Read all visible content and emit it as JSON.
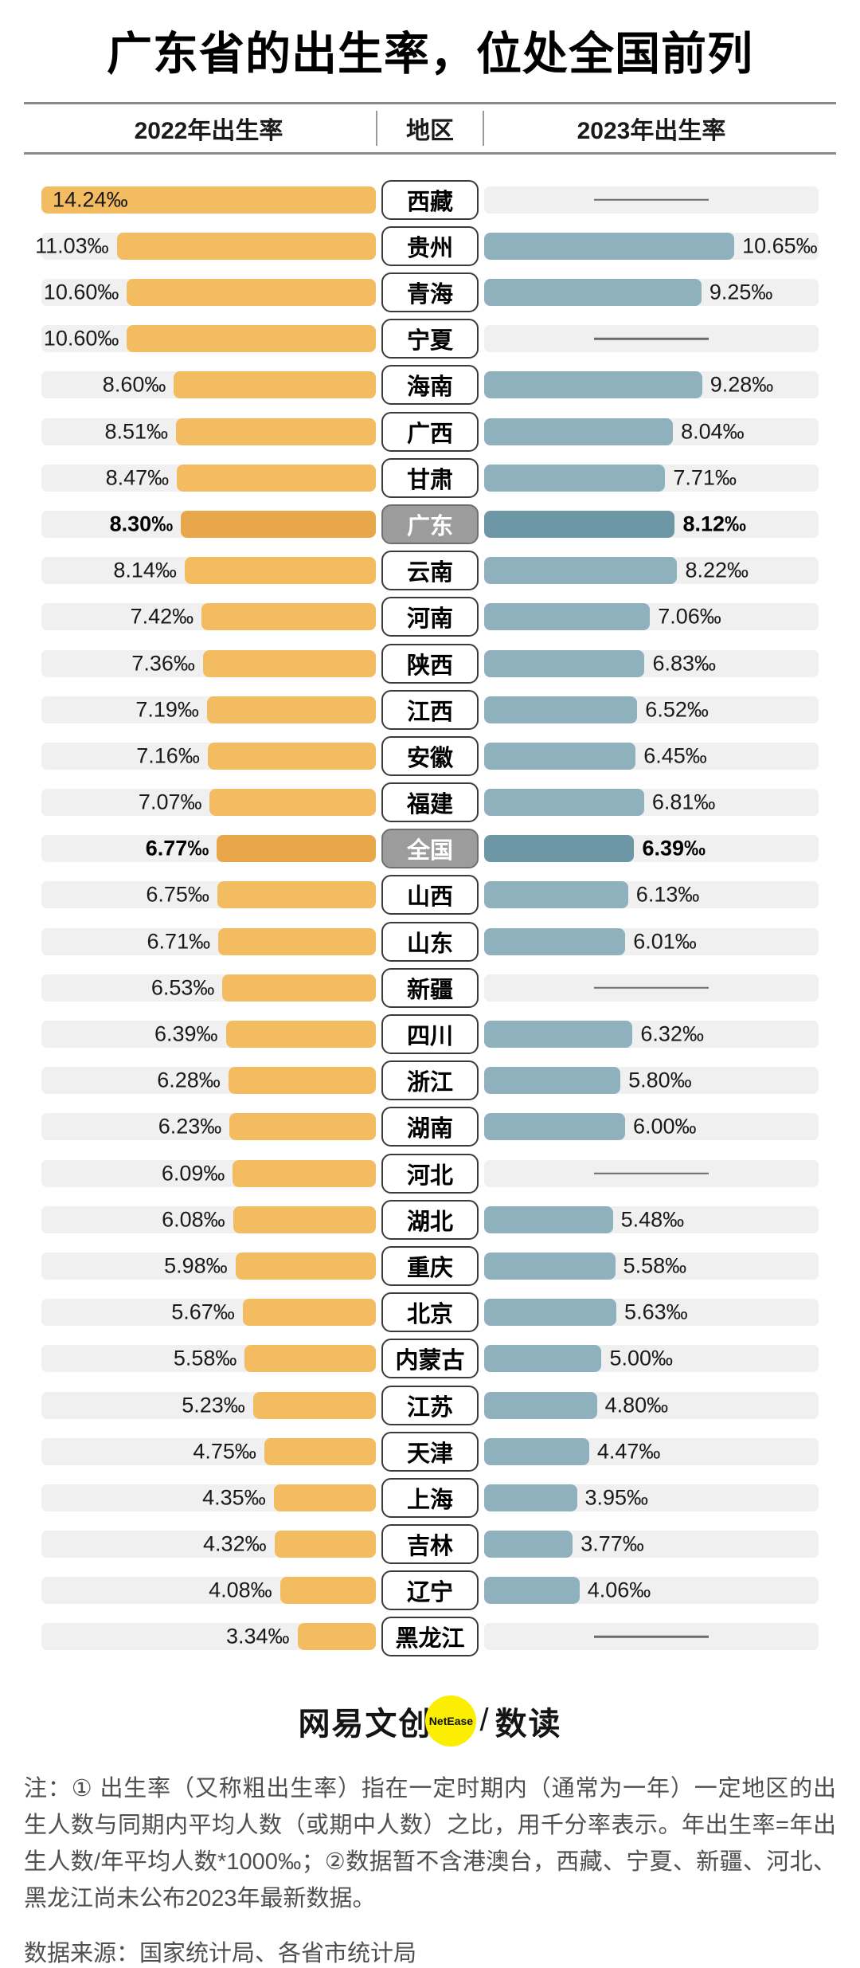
{
  "title": "广东省的出生率，位处全国前列",
  "header": {
    "col_2022": "2022年出生率",
    "col_region": "地区",
    "col_2023": "2023年出生率"
  },
  "chart_data": {
    "type": "bar",
    "subtype": "diverging-horizontal-tornado",
    "unit": "‰",
    "axis_max": 14.24,
    "series": [
      {
        "name": "2022年出生率",
        "color": "#F4BC60"
      },
      {
        "name": "2023年出生率",
        "color": "#8FB1BE"
      }
    ],
    "rows": [
      {
        "region": "西藏",
        "v2022": 14.24,
        "v2023": null,
        "highlight": false
      },
      {
        "region": "贵州",
        "v2022": 11.03,
        "v2023": 10.65,
        "highlight": false
      },
      {
        "region": "青海",
        "v2022": 10.6,
        "v2023": 9.25,
        "highlight": false
      },
      {
        "region": "宁夏",
        "v2022": 10.6,
        "v2023": null,
        "highlight": false
      },
      {
        "region": "海南",
        "v2022": 8.6,
        "v2023": 9.28,
        "highlight": false
      },
      {
        "region": "广西",
        "v2022": 8.51,
        "v2023": 8.04,
        "highlight": false
      },
      {
        "region": "甘肃",
        "v2022": 8.47,
        "v2023": 7.71,
        "highlight": false
      },
      {
        "region": "广东",
        "v2022": 8.3,
        "v2023": 8.12,
        "highlight": true
      },
      {
        "region": "云南",
        "v2022": 8.14,
        "v2023": 8.22,
        "highlight": false
      },
      {
        "region": "河南",
        "v2022": 7.42,
        "v2023": 7.06,
        "highlight": false
      },
      {
        "region": "陕西",
        "v2022": 7.36,
        "v2023": 6.83,
        "highlight": false
      },
      {
        "region": "江西",
        "v2022": 7.19,
        "v2023": 6.52,
        "highlight": false
      },
      {
        "region": "安徽",
        "v2022": 7.16,
        "v2023": 6.45,
        "highlight": false
      },
      {
        "region": "福建",
        "v2022": 7.07,
        "v2023": 6.81,
        "highlight": false
      },
      {
        "region": "全国",
        "v2022": 6.77,
        "v2023": 6.39,
        "highlight": true
      },
      {
        "region": "山西",
        "v2022": 6.75,
        "v2023": 6.13,
        "highlight": false
      },
      {
        "region": "山东",
        "v2022": 6.71,
        "v2023": 6.01,
        "highlight": false
      },
      {
        "region": "新疆",
        "v2022": 6.53,
        "v2023": null,
        "highlight": false
      },
      {
        "region": "四川",
        "v2022": 6.39,
        "v2023": 6.32,
        "highlight": false
      },
      {
        "region": "浙江",
        "v2022": 6.28,
        "v2023": 5.8,
        "highlight": false
      },
      {
        "region": "湖南",
        "v2022": 6.23,
        "v2023": 6.0,
        "highlight": false
      },
      {
        "region": "河北",
        "v2022": 6.09,
        "v2023": null,
        "highlight": false
      },
      {
        "region": "湖北",
        "v2022": 6.08,
        "v2023": 5.48,
        "highlight": false
      },
      {
        "region": "重庆",
        "v2022": 5.98,
        "v2023": 5.58,
        "highlight": false
      },
      {
        "region": "北京",
        "v2022": 5.67,
        "v2023": 5.63,
        "highlight": false
      },
      {
        "region": "内蒙古",
        "v2022": 5.58,
        "v2023": 5.0,
        "highlight": false
      },
      {
        "region": "江苏",
        "v2022": 5.23,
        "v2023": 4.8,
        "highlight": false
      },
      {
        "region": "天津",
        "v2022": 4.75,
        "v2023": 4.47,
        "highlight": false
      },
      {
        "region": "上海",
        "v2022": 4.35,
        "v2023": 3.95,
        "highlight": false
      },
      {
        "region": "吉林",
        "v2022": 4.32,
        "v2023": 3.77,
        "highlight": false
      },
      {
        "region": "辽宁",
        "v2022": 4.08,
        "v2023": 4.06,
        "highlight": false
      },
      {
        "region": "黑龙江",
        "v2022": 3.34,
        "v2023": null,
        "highlight": false
      }
    ]
  },
  "colors": {
    "bar2022": "#F4BC60",
    "bar2022hl": "#E9A74B",
    "bar2023": "#8FB1BE",
    "bar2023hl": "#6E97A6",
    "track": "#F0F0F0",
    "rule": "#8A8A8A",
    "boxborder": "#3A3A3A",
    "hlboxbg": "#9C9C9C",
    "hlboxborder": "#6F6F6F",
    "dash": "#6B6B6B",
    "yellow": "#FBEE00",
    "notecol": "#4F4F4F"
  },
  "footer": {
    "brand_left": "网易文创",
    "brand_badge": "NetEase",
    "brand_sep": "/",
    "brand_right": "数读",
    "note": "注：① 出生率（又称粗出生率）指在一定时期内（通常为一年）一定地区的出生人数与同期内平均人数（或期中人数）之比，用千分率表示。年出生率=年出生人数/年平均人数*1000‰；②数据暂不含港澳台，西藏、宁夏、新疆、河北、黑龙江尚未公布2023年最新数据。",
    "source": "数据来源：国家统计局、各省市统计局"
  }
}
